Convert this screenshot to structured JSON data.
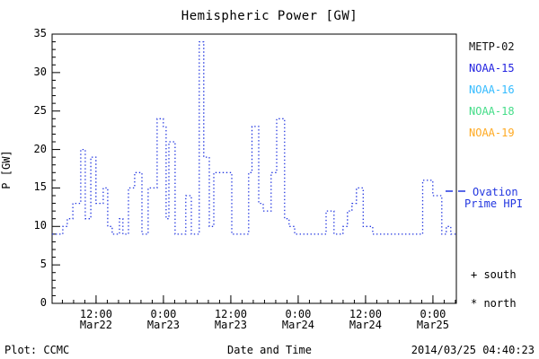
{
  "title": "Hemispheric Power [GW]",
  "footer": {
    "left": "Plot: CCMC",
    "center": "Date and Time",
    "right": "2014/03/25 04:40:23"
  },
  "ylabel": "P [GW]",
  "colors": {
    "axis": "#000000",
    "curve": "#2236e0",
    "metp02": "#111111",
    "noaa15": "#2222e0",
    "noaa16": "#33bbff",
    "noaa18": "#44dd88",
    "noaa19": "#ffaa22"
  },
  "legend": {
    "satellites": [
      {
        "label": "METP-02",
        "color_key": "metp02"
      },
      {
        "label": "NOAA-15",
        "color_key": "noaa15"
      },
      {
        "label": "NOAA-16",
        "color_key": "noaa16"
      },
      {
        "label": "NOAA-18",
        "color_key": "noaa18"
      },
      {
        "label": "NOAA-19",
        "color_key": "noaa19"
      }
    ],
    "model_line1": "Ovation",
    "model_line2": "Prime HPI",
    "south_marker": "+ south",
    "north_marker": "* north"
  },
  "chart_data": {
    "type": "line",
    "style": "dotted-step",
    "title": "Hemispheric Power [GW]",
    "xlabel": "Date and Time",
    "ylabel": "P [GW]",
    "ylim": [
      0,
      35
    ],
    "y_major_step": 5,
    "y_minor_step": 1,
    "y_tick_labels": [
      "0",
      "5",
      "10",
      "15",
      "20",
      "25",
      "30",
      "35"
    ],
    "x_span_hours": 72,
    "x_minor_step_hours": 2,
    "x_minor_start_hour": 1.83,
    "x_ticks": [
      {
        "hour": 7.83,
        "time": "12:00",
        "date": "Mar22"
      },
      {
        "hour": 19.83,
        "time": "0:00",
        "date": "Mar23"
      },
      {
        "hour": 31.83,
        "time": "12:00",
        "date": "Mar23"
      },
      {
        "hour": 43.83,
        "time": "0:00",
        "date": "Mar24"
      },
      {
        "hour": 55.83,
        "time": "12:00",
        "date": "Mar24"
      },
      {
        "hour": 67.83,
        "time": "0:00",
        "date": "Mar25"
      }
    ],
    "series": [
      {
        "name": "Ovation Prime HPI",
        "color_key": "curve",
        "x_hours": [
          0,
          1.9,
          2.7,
          3.7,
          5.1,
          5.9,
          6.9,
          7.8,
          9.1,
          9.9,
          10.7,
          12.0,
          12.6,
          13.6,
          14.7,
          16.0,
          17.1,
          18.7,
          19.8,
          20.3,
          20.8,
          21.9,
          23.8,
          24.8,
          26.2,
          27.0,
          28.0,
          28.8,
          32.0,
          35.0,
          35.6,
          36.8,
          37.6,
          39.0,
          40.0,
          41.4,
          42.2,
          43.2,
          48.8,
          50.2,
          51.8,
          52.6,
          53.4,
          54.2,
          55.4,
          57.1,
          66.0,
          67.8,
          69.4,
          70.2,
          71.0
        ],
        "values": [
          9,
          10,
          11,
          13,
          20,
          11,
          19,
          13,
          15,
          10,
          9,
          11,
          9,
          15,
          17,
          9,
          15,
          24,
          23,
          11,
          21,
          9,
          14,
          9,
          34,
          19,
          10,
          17,
          9,
          17,
          23,
          13,
          12,
          17,
          24,
          11,
          10,
          9,
          12,
          9,
          10,
          12,
          13,
          15,
          10,
          9,
          16,
          14,
          9,
          10,
          9
        ]
      }
    ]
  }
}
